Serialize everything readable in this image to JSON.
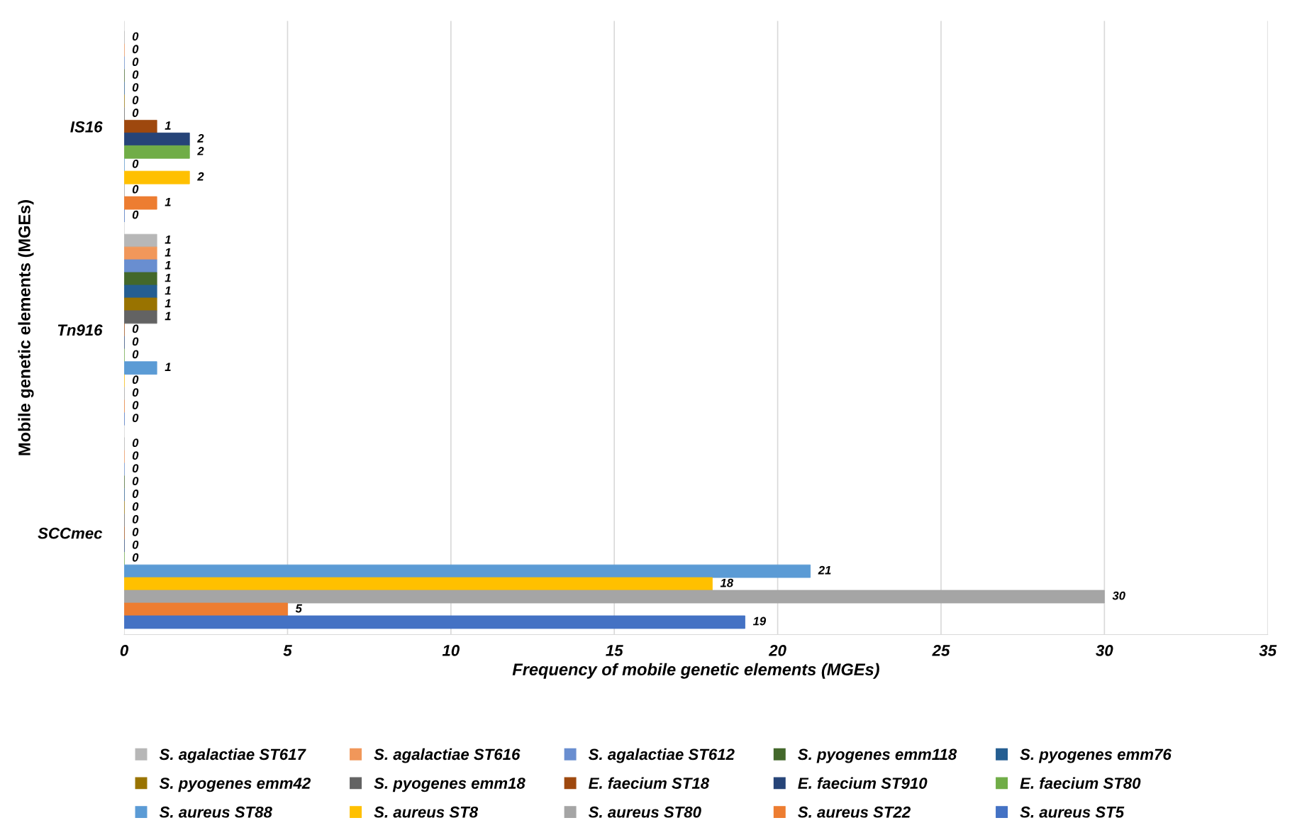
{
  "chart_data": {
    "type": "bar",
    "orientation": "horizontal",
    "xlabel": "Frequency of mobile genetic elements (MGEs)",
    "ylabel": "Mobile genetic elements (MGEs)",
    "categories": [
      "IS16",
      "Tn916",
      "SCCmec"
    ],
    "series": [
      {
        "name": "S. agalactiae ST617",
        "color": "#b7b7b7",
        "values": [
          0,
          1,
          0
        ]
      },
      {
        "name": "S. agalactiae ST616",
        "color": "#f1975a",
        "values": [
          0,
          1,
          0
        ]
      },
      {
        "name": "S. agalactiae ST612",
        "color": "#698ed0",
        "values": [
          0,
          1,
          0
        ]
      },
      {
        "name": "S. pyogenes emm118",
        "color": "#43682b",
        "values": [
          0,
          1,
          0
        ]
      },
      {
        "name": "S. pyogenes emm76",
        "color": "#255e91",
        "values": [
          0,
          1,
          0
        ]
      },
      {
        "name": "S. pyogenes emm42",
        "color": "#997300",
        "values": [
          0,
          1,
          0
        ]
      },
      {
        "name": "S. pyogenes emm18",
        "color": "#636363",
        "values": [
          0,
          1,
          0
        ]
      },
      {
        "name": "E. faecium ST18",
        "color": "#9e480e",
        "values": [
          1,
          0,
          0
        ]
      },
      {
        "name": "E. faecium ST910",
        "color": "#264478",
        "values": [
          2,
          0,
          0
        ]
      },
      {
        "name": "E. faecium ST80",
        "color": "#70ad47",
        "values": [
          2,
          0,
          0
        ]
      },
      {
        "name": "S. aureus ST88",
        "color": "#5b9bd5",
        "values": [
          0,
          1,
          21
        ]
      },
      {
        "name": "S. aureus ST8",
        "color": "#ffc000",
        "values": [
          2,
          0,
          18
        ]
      },
      {
        "name": "S. aureus ST80",
        "color": "#a5a5a5",
        "values": [
          0,
          0,
          30
        ]
      },
      {
        "name": "S. aureus ST22",
        "color": "#ed7d31",
        "values": [
          1,
          0,
          5
        ]
      },
      {
        "name": "S. aureus ST5",
        "color": "#4472c4",
        "values": [
          0,
          0,
          19
        ]
      }
    ],
    "xlim": [
      0,
      35
    ],
    "xticks": [
      0,
      5,
      10,
      15,
      20,
      25,
      30,
      35
    ],
    "grid": "x",
    "legend": "bottom",
    "data_labels": true
  }
}
